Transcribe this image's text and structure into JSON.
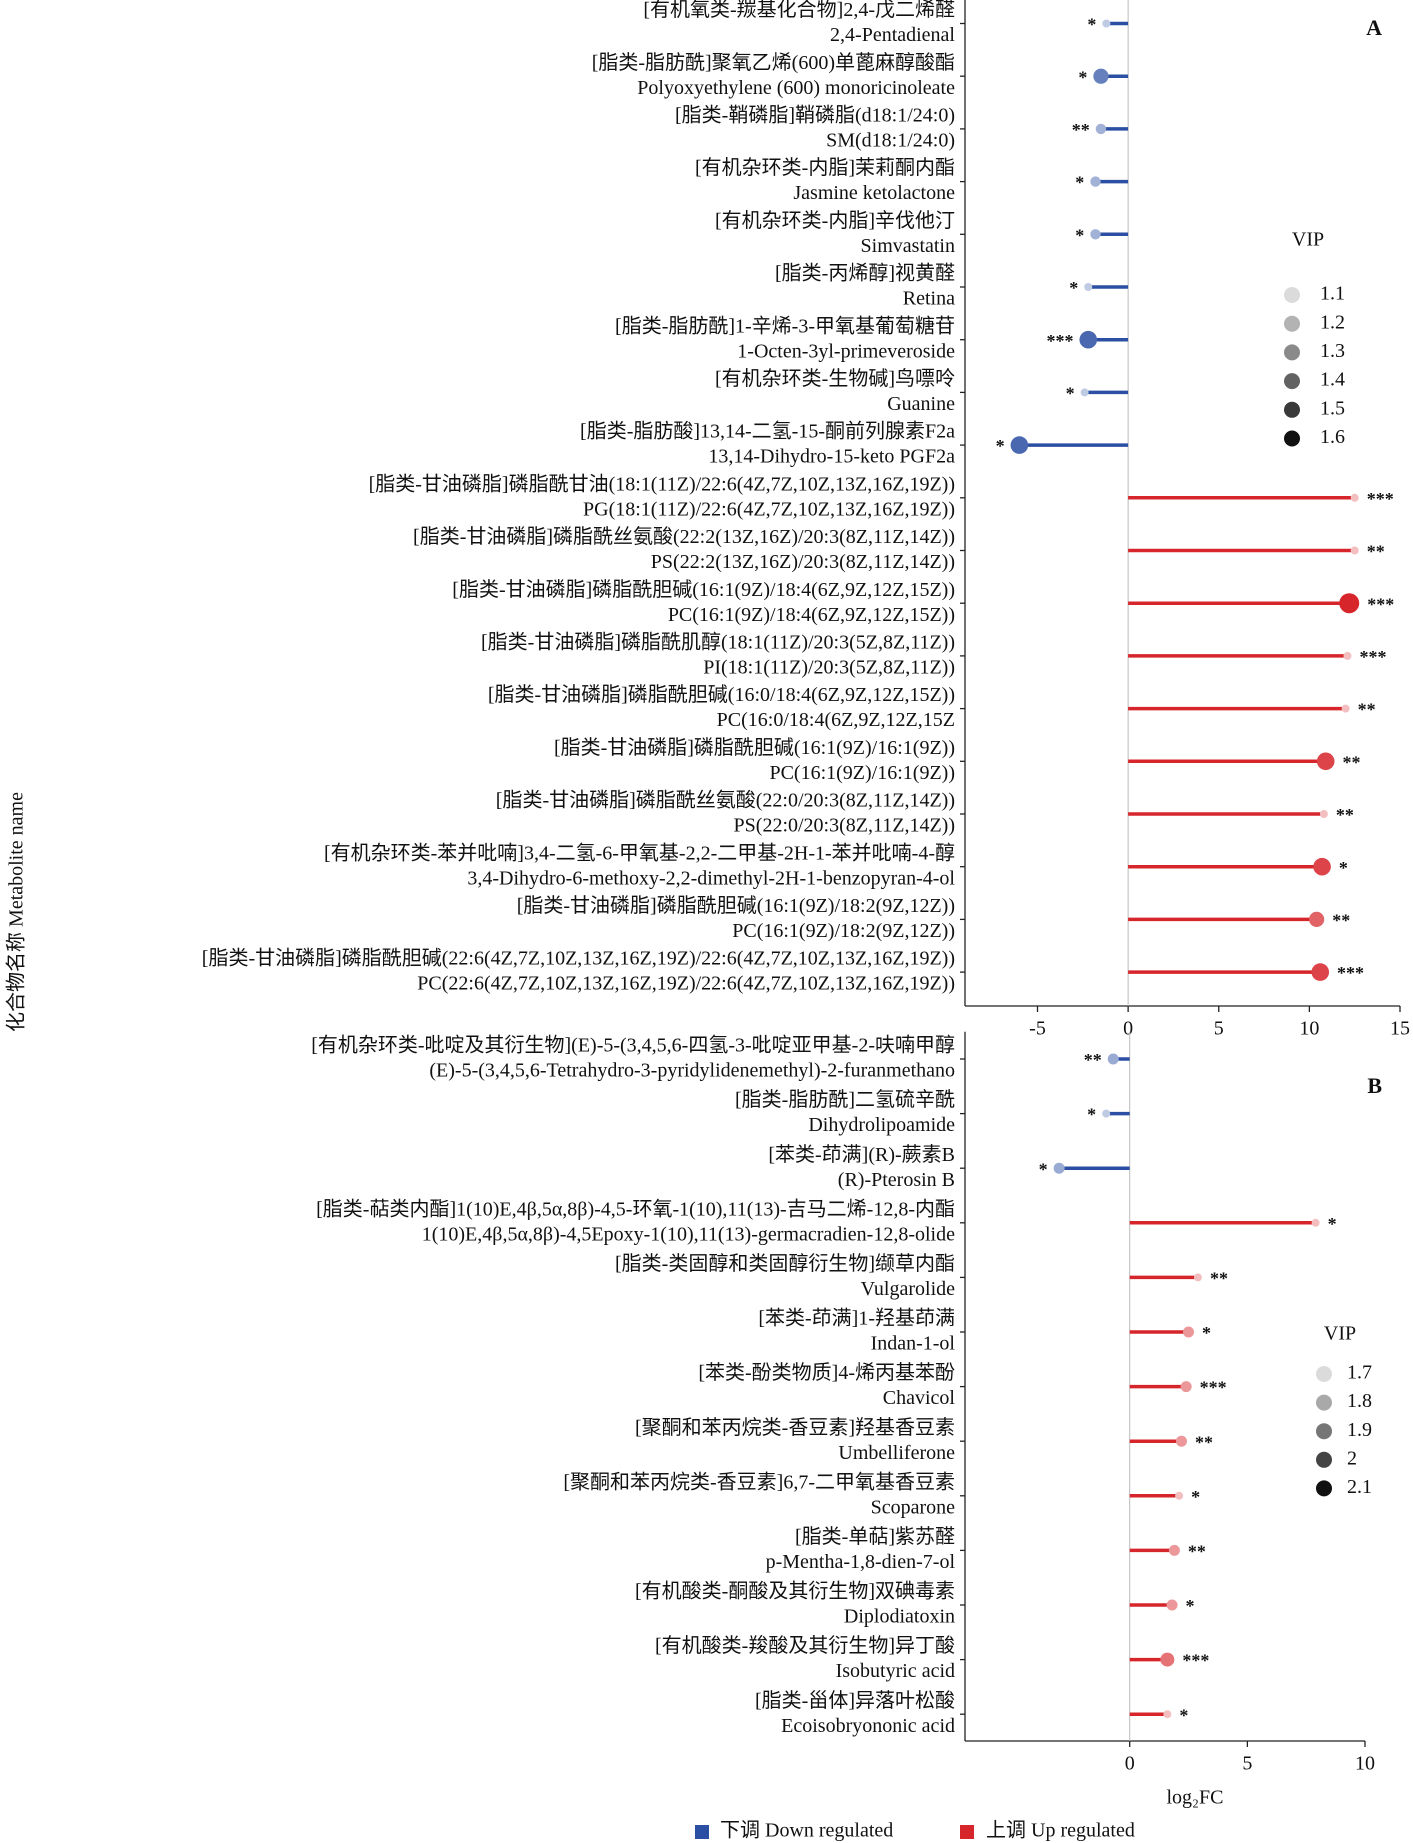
{
  "y_axis_label": "化合物名称 Metabolite name",
  "legend": [
    {
      "name": "下调 Down regulated",
      "color": "#2b4fa3"
    },
    {
      "name": "上调 Up regulated",
      "color": "#d7262b"
    }
  ],
  "chart_data": [
    {
      "type": "lollipop",
      "panel_label": "A",
      "xlabel": "log₂FC",
      "xlim": [
        -9,
        15
      ],
      "xticks": [
        -5,
        0,
        5,
        10,
        15
      ],
      "vip_title": "VIP",
      "vip_legend": [
        1.1,
        1.2,
        1.3,
        1.4,
        1.5,
        1.6
      ],
      "categories": [
        [
          "[有机氧类-羰基化合物]2,4-戊二烯醛",
          "2,4-Pentadienal"
        ],
        [
          "[脂类-脂肪酰]聚氧乙烯(600)单蓖麻醇酸酯",
          "Polyoxyethylene (600) monoricinoleate"
        ],
        [
          "[脂类-鞘磷脂]鞘磷脂(d18:1/24:0)",
          "SM(d18:1/24:0)"
        ],
        [
          "[有机杂环类-内脂]茉莉酮内酯",
          "Jasmine ketolactone"
        ],
        [
          "[有机杂环类-内脂]辛伐他汀",
          "Simvastatin"
        ],
        [
          "[脂类-丙烯醇]视黄醛",
          "Retina"
        ],
        [
          "[脂类-脂肪酰]1-辛烯-3-甲氧基葡萄糖苷",
          "1-Octen-3yl-primeveroside"
        ],
        [
          "[有机杂环类-生物碱]鸟嘌呤",
          "Guanine"
        ],
        [
          "[脂类-脂肪酸]13,14-二氢-15-酮前列腺素F2a",
          "13,14-Dihydro-15-keto PGF2a"
        ],
        [
          "[脂类-甘油磷脂]磷脂酰甘油(18:1(11Z)/22:6(4Z,7Z,10Z,13Z,16Z,19Z))",
          "PG(18:1(11Z)/22:6(4Z,7Z,10Z,13Z,16Z,19Z))"
        ],
        [
          "[脂类-甘油磷脂]磷脂酰丝氨酸(22:2(13Z,16Z)/20:3(8Z,11Z,14Z))",
          "PS(22:2(13Z,16Z)/20:3(8Z,11Z,14Z))"
        ],
        [
          "[脂类-甘油磷脂]磷脂酰胆碱(16:1(9Z)/18:4(6Z,9Z,12Z,15Z))",
          "PC(16:1(9Z)/18:4(6Z,9Z,12Z,15Z))"
        ],
        [
          "[脂类-甘油磷脂]磷脂酰肌醇(18:1(11Z)/20:3(5Z,8Z,11Z))",
          "PI(18:1(11Z)/20:3(5Z,8Z,11Z))"
        ],
        [
          "[脂类-甘油磷脂]磷脂酰胆碱(16:0/18:4(6Z,9Z,12Z,15Z))",
          "PC(16:0/18:4(6Z,9Z,12Z,15Z"
        ],
        [
          "[脂类-甘油磷脂]磷脂酰胆碱(16:1(9Z)/16:1(9Z))",
          "PC(16:1(9Z)/16:1(9Z))"
        ],
        [
          "[脂类-甘油磷脂]磷脂酰丝氨酸(22:0/20:3(8Z,11Z,14Z))",
          "PS(22:0/20:3(8Z,11Z,14Z))"
        ],
        [
          "[有机杂环类-苯并吡喃]3,4-二氢-6-甲氧基-2,2-二甲基-2H-1-苯并吡喃-4-醇",
          "3,4-Dihydro-6-methoxy-2,2-dimethyl-2H-1-benzopyran-4-ol"
        ],
        [
          "[脂类-甘油磷脂]磷脂酰胆碱(16:1(9Z)/18:2(9Z,12Z))",
          "PC(16:1(9Z)/18:2(9Z,12Z))"
        ],
        [
          "[脂类-甘油磷脂]磷脂酰胆碱(22:6(4Z,7Z,10Z,13Z,16Z,19Z)/22:6(4Z,7Z,10Z,13Z,16Z,19Z))",
          "PC(22:6(4Z,7Z,10Z,13Z,16Z,19Z)/22:6(4Z,7Z,10Z,13Z,16Z,19Z))"
        ]
      ],
      "values": [
        -1.2,
        -1.5,
        -1.5,
        -1.8,
        -1.8,
        -2.2,
        -2.2,
        -2.4,
        -6.0,
        12.5,
        12.5,
        12.2,
        12.1,
        12.0,
        10.9,
        10.8,
        10.7,
        10.4,
        10.6
      ],
      "vip": [
        1.1,
        1.4,
        1.2,
        1.2,
        1.2,
        1.1,
        1.5,
        1.1,
        1.5,
        1.1,
        1.1,
        1.6,
        1.1,
        1.1,
        1.5,
        1.1,
        1.5,
        1.4,
        1.5
      ],
      "significance": [
        "*",
        "*",
        "**",
        "*",
        "*",
        "*",
        "***",
        "*",
        "*",
        "***",
        "**",
        "***",
        "***",
        "**",
        "**",
        "**",
        "*",
        "**",
        "***"
      ]
    },
    {
      "type": "lollipop",
      "panel_label": "B",
      "xlabel": "log₂FC",
      "xlim": [
        -7,
        10
      ],
      "xticks": [
        0,
        5,
        10
      ],
      "vip_title": "VIP",
      "vip_legend": [
        1.7,
        1.8,
        1.9,
        2.0,
        2.1
      ],
      "categories": [
        [
          "[有机杂环类-吡啶及其衍生物](E)-5-(3,4,5,6-四氢-3-吡啶亚甲基-2-呋喃甲醇",
          "(E)-5-(3,4,5,6-Tetrahydro-3-pyridylidenemethyl)-2-furanmethano"
        ],
        [
          "[脂类-脂肪酰]二氢硫辛酰",
          "Dihydrolipoamide"
        ],
        [
          "[苯类-茚满](R)-蕨素B",
          "(R)-Pterosin B"
        ],
        [
          "[脂类-萜类内酯]1(10)E,4β,5α,8β)-4,5-环氧-1(10),11(13)-吉马二烯-12,8-内酯",
          "1(10)E,4β,5α,8β)-4,5Epoxy-1(10),11(13)-germacradien-12,8-olide"
        ],
        [
          "[脂类-类固醇和类固醇衍生物]缬草内酯",
          "Vulgarolide"
        ],
        [
          "[苯类-茚满]1-羟基茚满",
          "Indan-1-ol"
        ],
        [
          "[苯类-酚类物质]4-烯丙基苯酚",
          "Chavicol"
        ],
        [
          "[聚酮和苯丙烷类-香豆素]羟基香豆素",
          "Umbelliferone"
        ],
        [
          "[聚酮和苯丙烷类-香豆素]6,7-二甲氧基香豆素",
          "Scoparone"
        ],
        [
          "[脂类-单萜]紫苏醛",
          "p-Mentha-1,8-dien-7-ol"
        ],
        [
          "[有机酸类-酮酸及其衍生物]双碘毒素",
          "Diplodiatoxin"
        ],
        [
          "[有机酸类-羧酸及其衍生物]异丁酸",
          "Isobutyric acid"
        ],
        [
          "[脂类-甾体]异落叶松酸",
          "Ecoisobryononic acid"
        ]
      ],
      "values": [
        -0.7,
        -1.0,
        -3.0,
        7.9,
        2.9,
        2.5,
        2.4,
        2.2,
        2.1,
        1.9,
        1.8,
        1.6,
        1.6
      ],
      "vip": [
        1.8,
        1.7,
        1.8,
        1.7,
        1.7,
        1.8,
        1.8,
        1.8,
        1.7,
        1.8,
        1.8,
        1.9,
        1.7
      ],
      "significance": [
        "**",
        "*",
        "*",
        "*",
        "**",
        "*",
        "***",
        "**",
        "*",
        "**",
        "*",
        "***",
        "*"
      ]
    }
  ]
}
